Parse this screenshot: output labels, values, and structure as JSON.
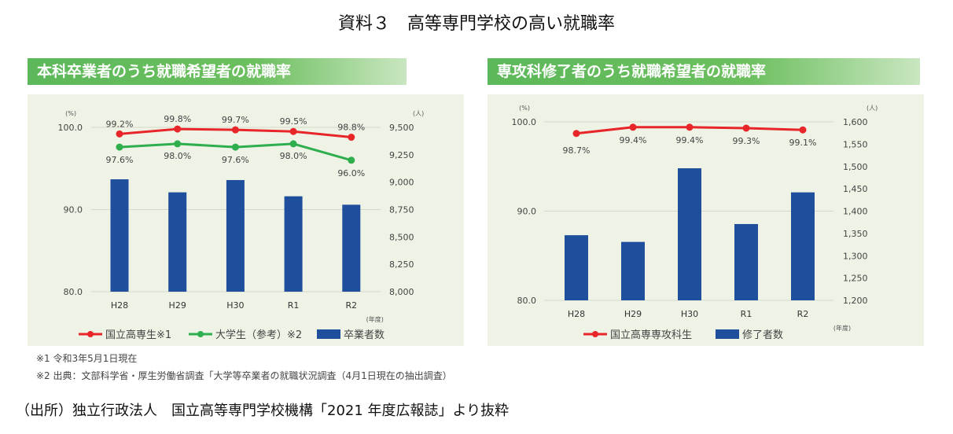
{
  "title": "資料３　高等専門学校の高い就職率",
  "colors": {
    "red": "#e8262a",
    "green": "#2fae4e",
    "bar": "#1f4e9c",
    "grid": "#d4d8cc"
  },
  "notes": [
    "※1 令和3年5月1日現在",
    "※2 出典：文部科学省・厚生労働省調査「大学等卒業者の就職状況調査（4月1日現在の抽出調査）"
  ],
  "source": "（出所）独立行政法人　国立高等専門学校機構「2021 年度広報誌」より抜粋",
  "chart_data": [
    {
      "type": "bar+line",
      "title": "本科卒業者のうち就職希望者の就職率",
      "categories": [
        "H28",
        "H29",
        "H30",
        "R1",
        "R2"
      ],
      "xlabel": "(年度)",
      "ylabel_left": "(%)",
      "ylabel_right": "(人)",
      "ylim_left": [
        80,
        100
      ],
      "yticks_left": [
        "80.0",
        "90.0",
        "100.0"
      ],
      "ylim_right": [
        8000,
        9500
      ],
      "yticks_right": [
        "8,000",
        "8,250",
        "8,500",
        "8,750",
        "9,000",
        "9,250",
        "9,500"
      ],
      "grid": true,
      "lines": [
        {
          "name": "国立高専生※1",
          "color": "#e8262a",
          "values": [
            99.2,
            99.8,
            99.7,
            99.5,
            98.8
          ],
          "labels": [
            "99.2%",
            "99.8%",
            "99.7%",
            "99.5%",
            "98.8%"
          ],
          "label_pos": "above"
        },
        {
          "name": "大学生（参考）※2",
          "color": "#2fae4e",
          "values": [
            97.6,
            98.0,
            97.6,
            98.0,
            96.0
          ],
          "labels": [
            "97.6%",
            "98.0%",
            "97.6%",
            "98.0%",
            "96.0%"
          ],
          "label_pos": "below"
        }
      ],
      "bars": {
        "name": "卒業者数",
        "color": "#1f4e9c",
        "values": [
          9026,
          8907,
          9019,
          8871,
          8794
        ]
      }
    },
    {
      "type": "bar+line",
      "title": "専攻科修了者のうち就職希望者の就職率",
      "categories": [
        "H28",
        "H29",
        "H30",
        "R1",
        "R2"
      ],
      "xlabel": "(年度)",
      "ylabel_left": "(%)",
      "ylabel_right": "(人)",
      "ylim_left": [
        80,
        100
      ],
      "yticks_left": [
        "80.0",
        "90.0",
        "100.0"
      ],
      "ylim_right": [
        1200,
        1600
      ],
      "yticks_right": [
        "1,200",
        "1,250",
        "1,300",
        "1,350",
        "1,400",
        "1,450",
        "1,500",
        "1,550",
        "1,600"
      ],
      "grid": true,
      "lines": [
        {
          "name": "国立高専専攻科生",
          "color": "#e8262a",
          "values": [
            98.7,
            99.4,
            99.4,
            99.3,
            99.1
          ],
          "labels": [
            "98.7%",
            "99.4%",
            "99.4%",
            "99.3%",
            "99.1%"
          ],
          "label_pos": "below"
        }
      ],
      "bars": {
        "name": "修了者数",
        "color": "#1f4e9c",
        "values": [
          1346,
          1331,
          1496,
          1371,
          1442
        ]
      }
    }
  ]
}
